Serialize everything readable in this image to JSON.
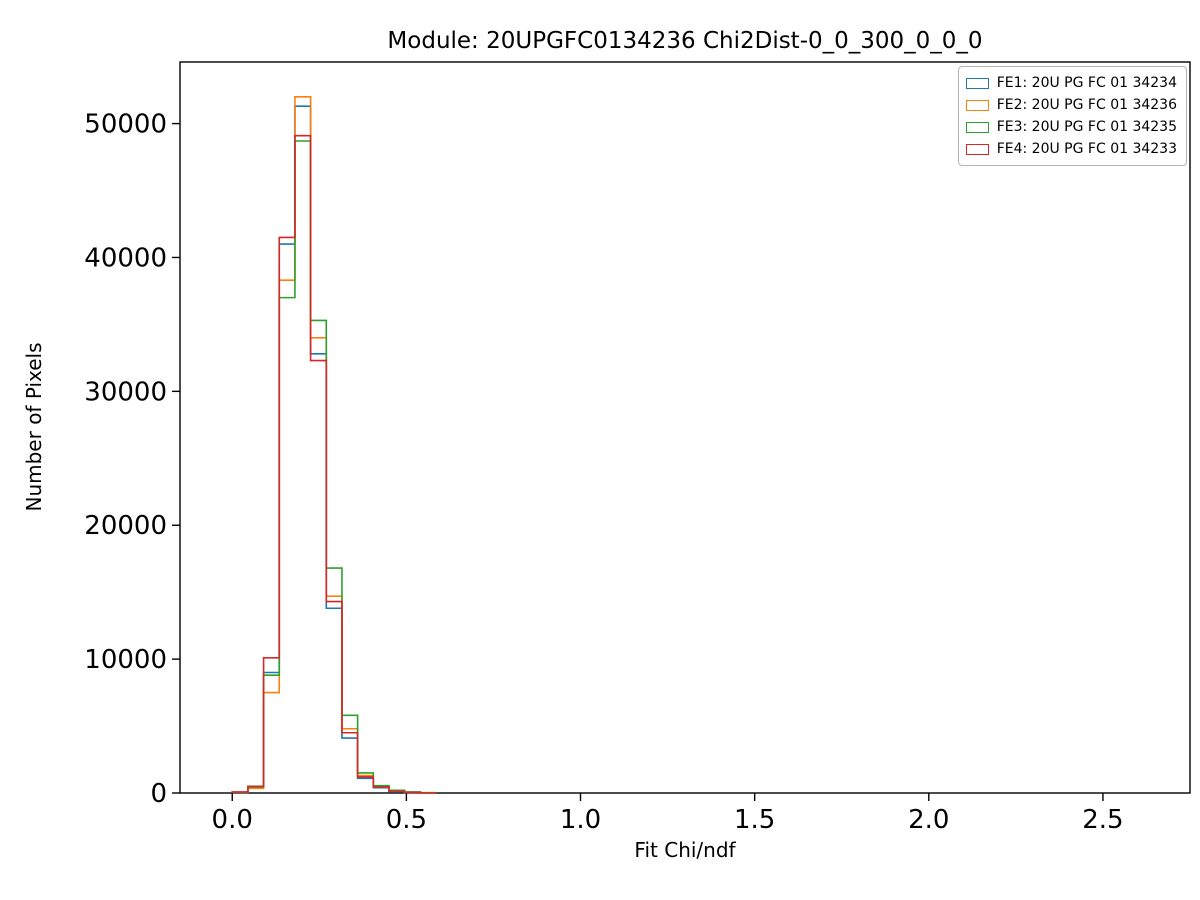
{
  "chart_data": {
    "type": "bar",
    "subtype": "step-histogram",
    "title": "Module: 20UPGFC0134236 Chi2Dist-0_0_300_0_0_0",
    "xlabel": "Fit Chi/ndf",
    "ylabel": "Number of Pixels",
    "xlim": [
      -0.15,
      2.75
    ],
    "ylim": [
      0,
      54600
    ],
    "grid": false,
    "legend_position": "upper right",
    "xticks": [
      {
        "value": 0.0,
        "label": "0.0"
      },
      {
        "value": 0.5,
        "label": "0.5"
      },
      {
        "value": 1.0,
        "label": "1.0"
      },
      {
        "value": 1.5,
        "label": "1.5"
      },
      {
        "value": 2.0,
        "label": "2.0"
      },
      {
        "value": 2.5,
        "label": "2.5"
      }
    ],
    "yticks": [
      {
        "value": 0,
        "label": "0"
      },
      {
        "value": 10000,
        "label": "10000"
      },
      {
        "value": 20000,
        "label": "20000"
      },
      {
        "value": 30000,
        "label": "30000"
      },
      {
        "value": 40000,
        "label": "40000"
      },
      {
        "value": 50000,
        "label": "50000"
      }
    ],
    "bin_edges": [
      0.0,
      0.045,
      0.09,
      0.135,
      0.18,
      0.225,
      0.27,
      0.315,
      0.36,
      0.405,
      0.45,
      0.495,
      0.54,
      0.585
    ],
    "series": [
      {
        "id": "fe1",
        "name": "FE1: 20U PG FC 01 34234",
        "color": "#1f77b4",
        "values": [
          50,
          400,
          9000,
          41000,
          51300,
          32800,
          13800,
          4100,
          1100,
          400,
          120,
          40,
          0
        ]
      },
      {
        "id": "fe2",
        "name": "FE2: 20U PG FC 01 34236",
        "color": "#ff7f0e",
        "values": [
          50,
          350,
          7500,
          38300,
          52000,
          34000,
          14700,
          4800,
          1300,
          500,
          150,
          50,
          0
        ]
      },
      {
        "id": "fe3",
        "name": "FE3: 20U PG FC 01 34235",
        "color": "#2ca02c",
        "values": [
          60,
          450,
          8800,
          37000,
          48700,
          35300,
          16800,
          5800,
          1500,
          550,
          200,
          80,
          20
        ]
      },
      {
        "id": "fe4",
        "name": "FE4: 20U PG FC 01 34233",
        "color": "#d62728",
        "values": [
          80,
          500,
          10100,
          41500,
          49100,
          32300,
          14300,
          4500,
          1200,
          450,
          140,
          50,
          0
        ]
      }
    ]
  }
}
